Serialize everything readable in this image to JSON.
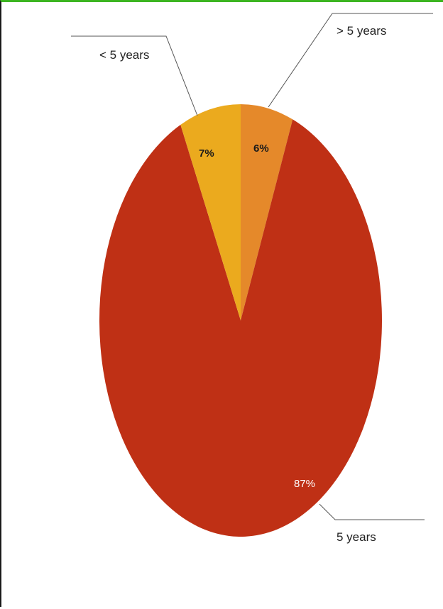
{
  "chart_data": {
    "type": "pie",
    "title": "",
    "slices": [
      {
        "label": "> 5 years",
        "value": 6,
        "value_label": "6%",
        "color": "#e5892a"
      },
      {
        "label": "5 years",
        "value": 87,
        "value_label": "87%",
        "color": "#bf3015"
      },
      {
        "label": "< 5 years",
        "value": 7,
        "value_label": "7%",
        "color": "#ebaa1e"
      }
    ],
    "legend": "callout labels with leader lines"
  }
}
